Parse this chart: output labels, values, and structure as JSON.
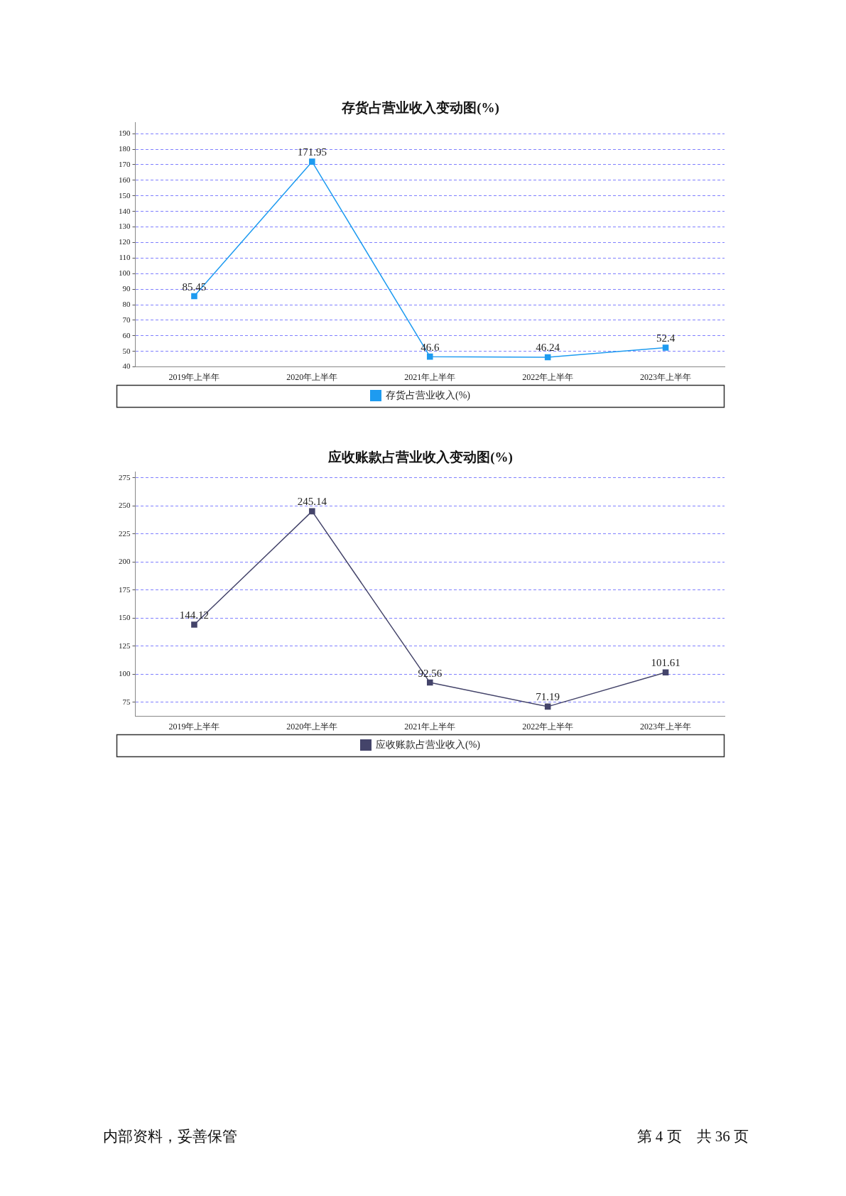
{
  "chart_data": [
    {
      "type": "line",
      "title": "存货占营业收入变动图(%)",
      "categories": [
        "2019年上半年",
        "2020年上半年",
        "2021年上半年",
        "2022年上半年",
        "2023年上半年"
      ],
      "series": [
        {
          "name": "存货占营业收入(%)",
          "color": "#1e9bf0",
          "values": [
            85.45,
            171.95,
            46.6,
            46.24,
            52.4
          ]
        }
      ],
      "ylim": [
        40,
        197
      ],
      "yticks": [
        40,
        50,
        60,
        70,
        80,
        90,
        100,
        110,
        120,
        130,
        140,
        150,
        160,
        170,
        180,
        190
      ],
      "grid": "y",
      "legend": "bottom",
      "marker": "square",
      "line_style": "solid",
      "data_labels": true
    },
    {
      "type": "line",
      "title": "应收账款占营业收入变动图(%)",
      "categories": [
        "2019年上半年",
        "2020年上半年",
        "2021年上半年",
        "2022年上半年",
        "2023年上半年"
      ],
      "series": [
        {
          "name": "应收账款占营业收入(%)",
          "color": "#44446a",
          "values": [
            144.12,
            245.14,
            92.56,
            71.19,
            101.61
          ]
        }
      ],
      "ylim": [
        62.5,
        280
      ],
      "yticks": [
        75,
        100,
        125,
        150,
        175,
        200,
        225,
        250,
        275
      ],
      "grid": "y",
      "legend": "bottom",
      "marker": "square",
      "line_style": "solid",
      "data_labels": true,
      "annotations": [
        "内部资料，妥善保管",
        "第 4 页　共 36 页"
      ]
    }
  ]
}
